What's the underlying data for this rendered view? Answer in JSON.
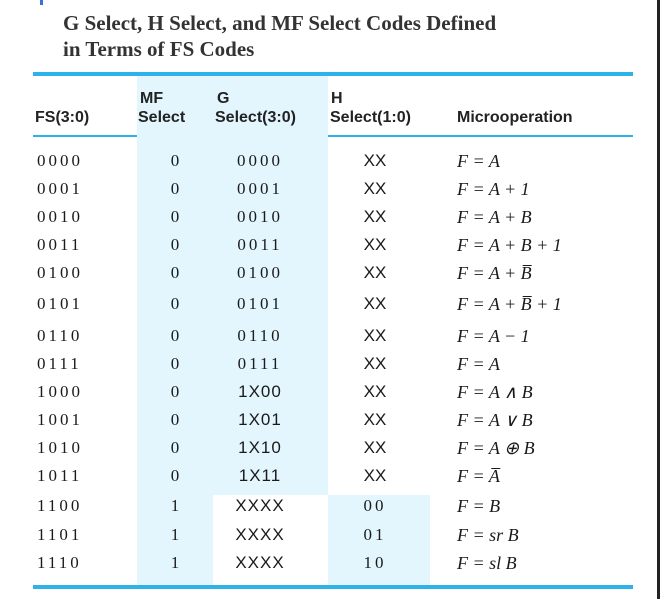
{
  "caption": {
    "line1": "G Select, H Select, and MF Select Codes Defined",
    "line2": "in Terms of FS Codes"
  },
  "headers": {
    "fs": "FS(3:0)",
    "mf_top": "MF",
    "mf_bottom": "Select",
    "g_top": "G",
    "g_bottom": "Select(3:0)",
    "h_top": "H",
    "h_bottom": "Select(1:0)",
    "microoperation": "Microoperation"
  },
  "rows": [
    {
      "fs": "0000",
      "mf": "0",
      "g": "0000",
      "h": "XX",
      "op": "F = A"
    },
    {
      "fs": "0001",
      "mf": "0",
      "g": "0001",
      "h": "XX",
      "op": "F = A + 1"
    },
    {
      "fs": "0010",
      "mf": "0",
      "g": "0010",
      "h": "XX",
      "op": "F = A + B"
    },
    {
      "fs": "0011",
      "mf": "0",
      "g": "0011",
      "h": "XX",
      "op": "F = A + B + 1"
    },
    {
      "fs": "0100",
      "mf": "0",
      "g": "0100",
      "h": "XX",
      "op": "F = A + B̅"
    },
    {
      "fs": "0101",
      "mf": "0",
      "g": "0101",
      "h": "XX",
      "op": "F = A + B̅ + 1"
    },
    {
      "fs": "0110",
      "mf": "0",
      "g": "0110",
      "h": "XX",
      "op": "F = A − 1"
    },
    {
      "fs": "0111",
      "mf": "0",
      "g": "0111",
      "h": "XX",
      "op": "F = A"
    },
    {
      "fs": "1000",
      "mf": "0",
      "g": "1X00",
      "h": "XX",
      "op": "F = A ∧ B"
    },
    {
      "fs": "1001",
      "mf": "0",
      "g": "1X01",
      "h": "XX",
      "op": "F = A ∨ B"
    },
    {
      "fs": "1010",
      "mf": "0",
      "g": "1X10",
      "h": "XX",
      "op": "F = A ⊕ B"
    },
    {
      "fs": "1011",
      "mf": "0",
      "g": "1X11",
      "h": "XX",
      "op": "F = A̅"
    },
    {
      "fs": "1100",
      "mf": "1",
      "g": "XXXX",
      "h": "00",
      "op": "F = B"
    },
    {
      "fs": "1101",
      "mf": "1",
      "g": "XXXX",
      "h": "01",
      "op": "F = sr B"
    },
    {
      "fs": "1110",
      "mf": "1",
      "g": "XXXX",
      "h": "10",
      "op": "F = sl B"
    }
  ],
  "colors": {
    "rule": "#2db3e9",
    "shade": "#e3f6fd"
  }
}
